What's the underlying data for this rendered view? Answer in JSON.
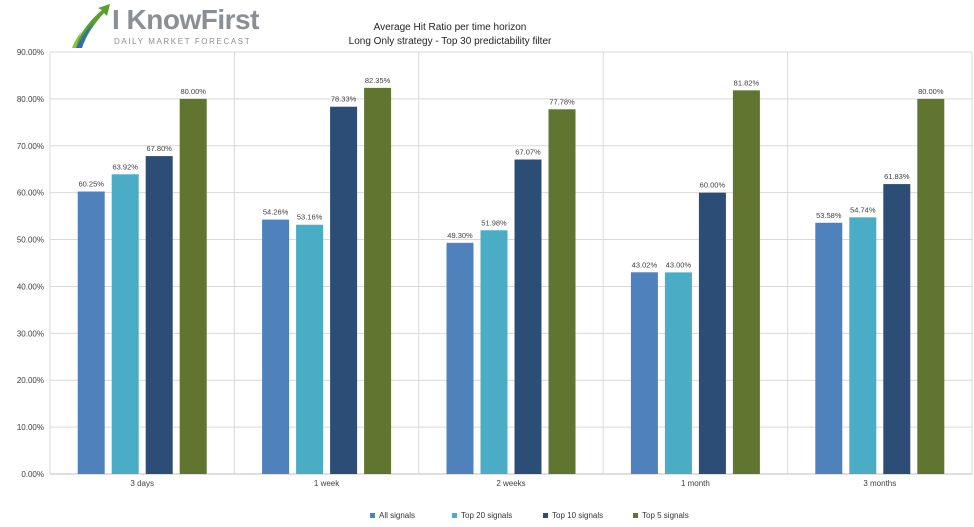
{
  "logo": {
    "name": "I KnowFirst",
    "tagline": "DAILY MARKET FORECAST"
  },
  "chart_data": {
    "type": "bar",
    "title": "Average Hit Ratio per time horizon",
    "subtitle": "Long Only strategy - Top 30 predictability filter",
    "categories": [
      "3 days",
      "1 week",
      "2 weeks",
      "1 month",
      "3 months"
    ],
    "series": [
      {
        "name": "All signals",
        "color": "#4f81bd",
        "values": [
          60.25,
          54.26,
          49.3,
          43.02,
          53.58
        ],
        "labels": [
          "60.25%",
          "54.26%",
          "49.30%",
          "43.02%",
          "53.58%"
        ]
      },
      {
        "name": "Top 20 signals",
        "color": "#4bacc6",
        "values": [
          63.92,
          53.16,
          51.98,
          43.0,
          54.74
        ],
        "labels": [
          "63.92%",
          "53.16%",
          "51.98%",
          "43.00%",
          "54.74%"
        ]
      },
      {
        "name": "Top 10 signals",
        "color": "#2c4d75",
        "values": [
          67.8,
          78.33,
          67.07,
          60.0,
          61.83
        ],
        "labels": [
          "67.80%",
          "78.33%",
          "67.07%",
          "60.00%",
          "61.83%"
        ]
      },
      {
        "name": "Top 5 signals",
        "color": "#607530",
        "values": [
          80.0,
          82.35,
          77.78,
          81.82,
          80.0
        ],
        "labels": [
          "80.00%",
          "82.35%",
          "77.78%",
          "81.82%",
          "80.00%"
        ]
      }
    ],
    "ylim": [
      0,
      90
    ],
    "yticks": [
      "0.00%",
      "10.00%",
      "20.00%",
      "30.00%",
      "40.00%",
      "50.00%",
      "60.00%",
      "70.00%",
      "80.00%",
      "90.00%"
    ],
    "grid": true,
    "legend": "bottom"
  }
}
